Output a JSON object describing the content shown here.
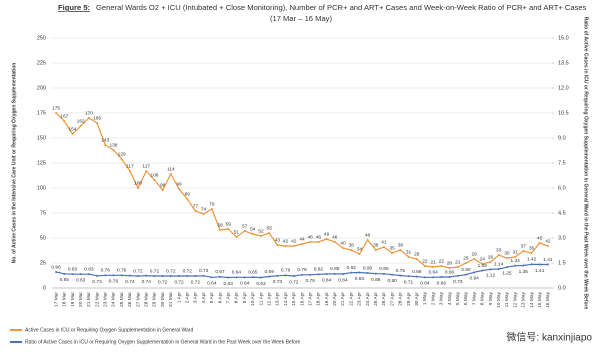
{
  "title_label": "Figure 5:",
  "chart_data": {
    "type": "line",
    "title": "General Wards O2 + ICU (Intubated + Close Monitoring), Number of PCR+ and ART+ Cases and Week-on-Week Ratio of PCR+ and ART+ Cases",
    "subtitle": "(17 Mar – 16 May)",
    "ylabel": "No. of Active Cases in the Intensive Care Unit or Requiring Oxygen Supplementation",
    "y2label": "Ratio of Active Cases in ICU or Requiring Oxygen Supplementation in General Ward in the Past Week over the Week Before",
    "categories": [
      "17 Mar",
      "18 Mar",
      "19 Mar",
      "20 Mar",
      "21 Mar",
      "22 Mar",
      "23 Mar",
      "24 Mar",
      "25 Mar",
      "26 Mar",
      "27 Mar",
      "28 Mar",
      "29 Mar",
      "30 Mar",
      "31 Mar",
      "1 Apr",
      "2 Apr",
      "3 Apr",
      "4 Apr",
      "5 Apr",
      "6 Apr",
      "7 Apr",
      "8 Apr",
      "9 Apr",
      "10 Apr",
      "11 Apr",
      "12 Apr",
      "13 Apr",
      "14 Apr",
      "15 Apr",
      "16 Apr",
      "17 Apr",
      "18 Apr",
      "19 Apr",
      "20 Apr",
      "21 Apr",
      "22 Apr",
      "23 Apr",
      "24 Apr",
      "25 Apr",
      "26 Apr",
      "27 Apr",
      "28 Apr",
      "29 Apr",
      "30 Apr",
      "1 May",
      "2 May",
      "3 May",
      "4 May",
      "5 May",
      "6 May",
      "7 May",
      "8 May",
      "9 May",
      "10 May",
      "11 May",
      "12 May",
      "13 May",
      "14 May",
      "15 May",
      "16 May"
    ],
    "series": [
      {
        "name": "Active Cases in ICU or Requiring Oxygen Supplementation in General Ward",
        "color": "#f0953a",
        "values": [
          175,
          167,
          154,
          162,
          170,
          165,
          143,
          138,
          129,
          117,
          100,
          117,
          108,
          98,
          114,
          99,
          89,
          77,
          74,
          79,
          58,
          59,
          51,
          57,
          54,
          52,
          55,
          43,
          42,
          42,
          44,
          46,
          46,
          49,
          46,
          40,
          38,
          34,
          48,
          38,
          41,
          35,
          38,
          31,
          29,
          22,
          21,
          22,
          20,
          21,
          25,
          29,
          24,
          26,
          33,
          30,
          31,
          37,
          35,
          45,
          42
        ]
      },
      {
        "name": "Ratio of Active Cases in ICU or Requiring Oxygen Supplementation in General Ward in the Past Week over the Week Before",
        "color": "#4a72b8",
        "axis": "y2",
        "values": [
          0.96,
          0.85,
          0.83,
          0.83,
          0.83,
          0.73,
          0.76,
          0.76,
          0.76,
          0.74,
          0.72,
          0.74,
          0.72,
          0.72,
          0.72,
          0.72,
          0.72,
          0.72,
          0.73,
          0.64,
          0.67,
          0.63,
          0.64,
          0.64,
          0.65,
          0.63,
          0.69,
          0.73,
          0.76,
          0.72,
          0.79,
          0.79,
          0.82,
          0.84,
          0.85,
          0.84,
          0.92,
          0.93,
          0.9,
          0.86,
          0.85,
          0.8,
          0.75,
          0.71,
          0.68,
          0.64,
          0.64,
          0.66,
          0.66,
          0.73,
          0.8,
          0.94,
          1.05,
          1.12,
          1.14,
          1.25,
          1.34,
          1.35,
          1.42,
          1.41,
          1.41
        ],
        "value_labels": [
          "0.96",
          "0.85",
          "0.83",
          "0.83",
          "0.83",
          "0.73",
          "0.76",
          "0.76",
          "0.76",
          "0.74",
          "0.72",
          "0.74",
          "0.72",
          "0.72",
          "0.72",
          "0.72",
          "0.72",
          "0.72",
          "0.73",
          "0.64",
          "0.67",
          "0.63",
          "0.64",
          "0.64",
          "0.65",
          "0.63",
          "0.69",
          "0.73",
          "0.76",
          "0.72",
          "0.79",
          "0.79",
          "0.82",
          "0.84",
          "0.85",
          "0.84",
          "0.92",
          "0.93",
          "0.90",
          "0.86",
          "0.85",
          "0.80",
          "0.75",
          "0.71",
          "0.68",
          "0.64",
          "0.64",
          "0.66",
          "0.66",
          "0.73",
          "0.80",
          "0.94",
          "1.05",
          "1.12",
          "1.14",
          "1.25",
          "1.34",
          "1.35",
          "1.42",
          "1.41",
          "1.41"
        ]
      }
    ],
    "ylim": [
      0,
      250
    ],
    "yticks": [
      0,
      25,
      50,
      75,
      100,
      125,
      150,
      175,
      200,
      225,
      250
    ],
    "y2lim": [
      0,
      15
    ],
    "y2ticks": [
      {
        "value": 0,
        "label": "0.0"
      },
      1.5,
      {
        "value": 3,
        "label": "3.0"
      },
      4.5,
      {
        "value": 6,
        "label": "6.0"
      },
      7.5,
      {
        "value": 9,
        "label": "9.0"
      },
      10.5,
      {
        "value": 12,
        "label": "12.0"
      },
      13.5,
      {
        "value": 15,
        "label": "15.0"
      }
    ],
    "grid": true,
    "legend": "bottom-left"
  },
  "watermark": "微信号: kanxinjiapo"
}
